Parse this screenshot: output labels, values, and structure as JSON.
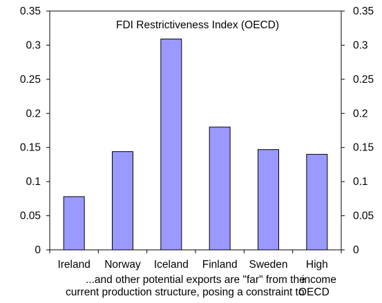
{
  "chart_data": {
    "type": "bar",
    "title": "FDI Restrictiveness Index (OECD)",
    "categories": [
      "Ireland",
      "Norway",
      "Iceland",
      "Finland",
      "Sweden",
      "High"
    ],
    "values": [
      0.078,
      0.144,
      0.309,
      0.18,
      0.147,
      0.14
    ],
    "ylim": [
      0,
      0.35
    ],
    "yticks": [
      "0",
      "0.05",
      "0.1",
      "0.15",
      "0.2",
      "0.25",
      "0.3",
      "0.35"
    ],
    "y2ticks": [
      "0",
      "0.05",
      "0.1",
      "0.15",
      "0.2",
      "0.25",
      "0.3",
      "0.35"
    ],
    "grid": false,
    "bar_color": "#9999ff",
    "bar_edge_color": "#000000"
  },
  "caption": {
    "line1": "...and other potential exports are \"far\" from the",
    "line2": "current production structure, posing a constraint to",
    "overlay_top": "income",
    "overlay_bottom": "OECD"
  }
}
